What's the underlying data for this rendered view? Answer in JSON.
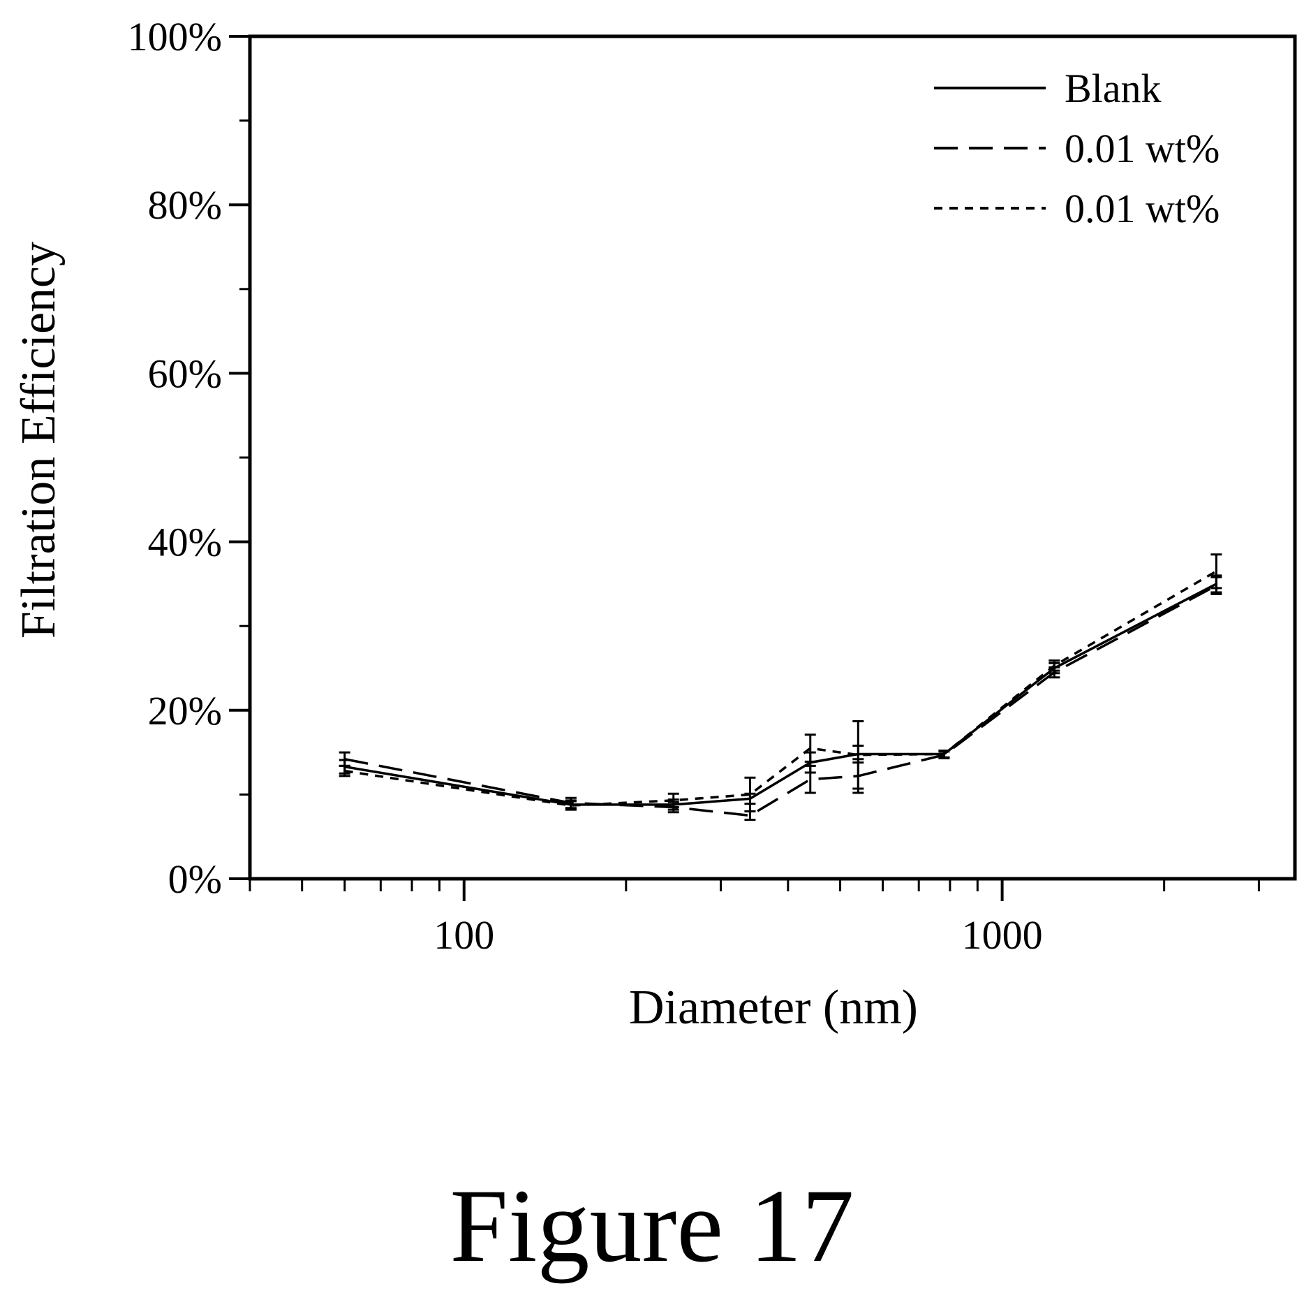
{
  "figure": {
    "caption": "Figure 17"
  },
  "chart_data": {
    "type": "line",
    "title": "",
    "xlabel": "Diameter (nm)",
    "ylabel": "Filtration Efficiency",
    "xscale": "log",
    "xlim": [
      40,
      3500
    ],
    "ylim": [
      0,
      1
    ],
    "x_ticks": [
      100,
      1000
    ],
    "x_tick_labels": [
      "100",
      "1000"
    ],
    "y_ticks": [
      0,
      0.2,
      0.4,
      0.6,
      0.8,
      1.0
    ],
    "y_tick_labels": [
      "0%",
      "20%",
      "40%",
      "60%",
      "80%",
      "100%"
    ],
    "grid": false,
    "legend_position": "top-right",
    "series": [
      {
        "name": "Blank",
        "line_style": "solid",
        "x": [
          60,
          158,
          245,
          340,
          440,
          540,
          780,
          1250,
          2500
        ],
        "y": [
          0.133,
          0.088,
          0.088,
          0.095,
          0.138,
          0.148,
          0.148,
          0.25,
          0.35
        ],
        "err": [
          0.008,
          0.005,
          0.006,
          0.006,
          0.012,
          0.01,
          0.004,
          0.006,
          0.01
        ]
      },
      {
        "name": "0.01 wt%",
        "line_style": "dashed",
        "x": [
          60,
          158,
          245,
          340,
          440,
          540,
          780,
          1250,
          2500
        ],
        "y": [
          0.142,
          0.09,
          0.085,
          0.075,
          0.118,
          0.122,
          0.147,
          0.245,
          0.348
        ],
        "err": [
          0.008,
          0.006,
          0.006,
          0.005,
          0.016,
          0.02,
          0.004,
          0.006,
          0.01
        ]
      },
      {
        "name": "0.01 wt%",
        "line_style": "dotted",
        "x": [
          60,
          158,
          245,
          340,
          440,
          540,
          780,
          1250,
          2500
        ],
        "y": [
          0.128,
          0.087,
          0.093,
          0.1,
          0.155,
          0.147,
          0.148,
          0.253,
          0.365
        ],
        "err": [
          0.006,
          0.005,
          0.008,
          0.02,
          0.016,
          0.04,
          0.004,
          0.006,
          0.02
        ]
      }
    ]
  }
}
